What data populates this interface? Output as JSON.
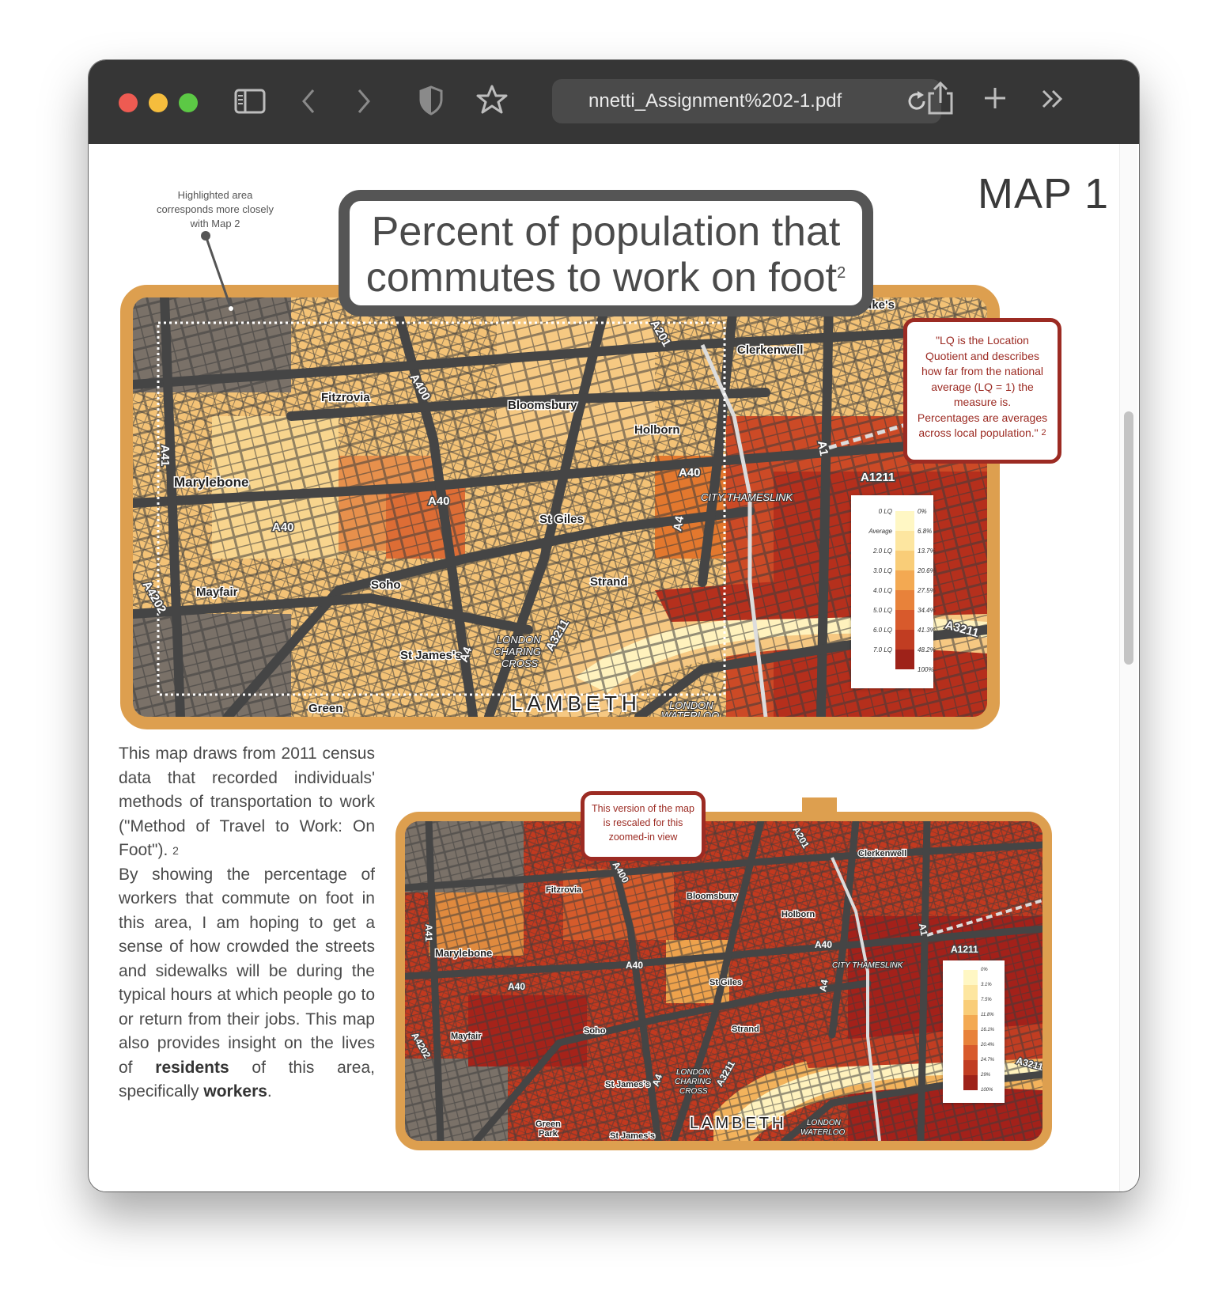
{
  "browser": {
    "url_text": "nnetti_Assignment%202-1.pdf",
    "colors": {
      "close": "#ee5b52",
      "minimize": "#f5bd3d",
      "zoom": "#5cc945"
    },
    "icons": [
      "sidebar-icon",
      "back-icon",
      "forward-icon",
      "shield-icon",
      "star-icon",
      "reload-icon",
      "share-icon",
      "new-tab-icon",
      "more-icon"
    ]
  },
  "page": {
    "map_label": "MAP 1",
    "highlight_note": [
      "Highlighted area",
      "corresponds more closely",
      "with Map 2"
    ],
    "title_line1": "Percent of population that",
    "title_line2": "commutes to work on foot",
    "title_sup": "2",
    "lq_note": [
      "\"LQ is the Location",
      "Quotient and describes",
      "how far from the national",
      "average (LQ = 1) the",
      "measure is.",
      "Percentages are averages",
      "across local population.\""
    ],
    "lq_sup": "2",
    "rescale_note": [
      "This version of the map",
      "is rescaled for this",
      "zoomed-in view"
    ],
    "paragraph1": "This map draws from 2011 census data that recorded individuals' methods of transportation to work (\"Method of Travel to Work: On Foot\").",
    "paragraph1_sup": "2",
    "paragraph2_a": "By showing the percentage of workers that commute on foot in this area, I am hoping to get a sense of how crowded the streets and sidewalks will be during the typical hours at which people go to or return from their jobs. This map also provides insight on the lives of ",
    "paragraph2_bold1": "residents",
    "paragraph2_b": " of this area, specifically ",
    "paragraph2_bold2": "workers",
    "paragraph2_c": "."
  },
  "map1": {
    "labels": {
      "fitzrovia": "Fitzrovia",
      "bloomsbury": "Bloomsbury",
      "holborn": "Holborn",
      "clerkenwell": "Clerkenwell",
      "marylebone": "Marylebone",
      "st_giles": "St Giles",
      "soho": "Soho",
      "mayfair": "Mayfair",
      "strand": "Strand",
      "st_james": "St James's",
      "lambeth": "LAMBETH",
      "green": "Green",
      "lukes": "Luke's",
      "city_thameslink": "CITY THAMESLINK",
      "charing_cross_1": "LONDON",
      "charing_cross_2": "CHARING",
      "charing_cross_3": "CROSS",
      "waterloo_1": "LONDON",
      "waterloo_2": "WATERLOO",
      "a40_1": "A40",
      "a40_2": "A40",
      "a40_3": "A40",
      "a400": "A400",
      "a41": "A41",
      "a201": "A201",
      "a1": "A1",
      "a1211": "A1211",
      "a4": "A4",
      "a4_2": "A4",
      "a3211": "A3211",
      "a3211_2": "A3211",
      "a4202": "A4202"
    },
    "legend": {
      "lq": [
        "0 LQ",
        "Average",
        "2.0 LQ",
        "3.0 LQ",
        "4.0 LQ",
        "5.0 LQ",
        "6.0 LQ",
        "7.0 LQ"
      ],
      "pct": [
        "0%",
        "6.8%",
        "13.7%",
        "20.6%",
        "27.5%",
        "34.4%",
        "41.3%",
        "48.2%",
        "100%"
      ],
      "colors": [
        "#fff7c4",
        "#fde6a0",
        "#f9cd78",
        "#f3a952",
        "#e8823a",
        "#d85a2c",
        "#c13d22",
        "#9e2219"
      ]
    }
  },
  "map2": {
    "labels": {
      "fitzrovia": "Fitzrovia",
      "bloomsbury": "Bloomsbury",
      "holborn": "Holborn",
      "clerkenwell": "Clerkenwell",
      "marylebone": "Marylebone",
      "st_giles": "St Giles",
      "soho": "Soho",
      "mayfair": "Mayfair",
      "strand": "Strand",
      "st_james": "St James's",
      "st_james_2": "St James's",
      "lambeth": "LAMBETH",
      "green_park_1": "Green",
      "green_park_2": "Park",
      "city_thameslink": "CITY THAMESLINK",
      "charing_cross_1": "LONDON",
      "charing_cross_2": "CHARING",
      "charing_cross_3": "CROSS",
      "waterloo_1": "LONDON",
      "waterloo_2": "WATERLOO",
      "a40_1": "A40",
      "a40_2": "A40",
      "a40_3": "A40",
      "a400": "A400",
      "a41": "A41",
      "a201": "A201",
      "a1": "A1",
      "a1211": "A1211",
      "a4": "A4",
      "a4_2": "A4",
      "a3211": "A3211",
      "a3211_2": "A3211",
      "a4202": "A4202"
    },
    "legend": {
      "pct": [
        "0%",
        "3.1%",
        "7.5%",
        "11.8%",
        "16.1%",
        "20.4%",
        "24.7%",
        "29%",
        "100%"
      ],
      "colors": [
        "#fff7c4",
        "#fde6a0",
        "#f9cd78",
        "#f3a952",
        "#e8823a",
        "#d85a2c",
        "#c13d22",
        "#9e2219"
      ]
    }
  }
}
